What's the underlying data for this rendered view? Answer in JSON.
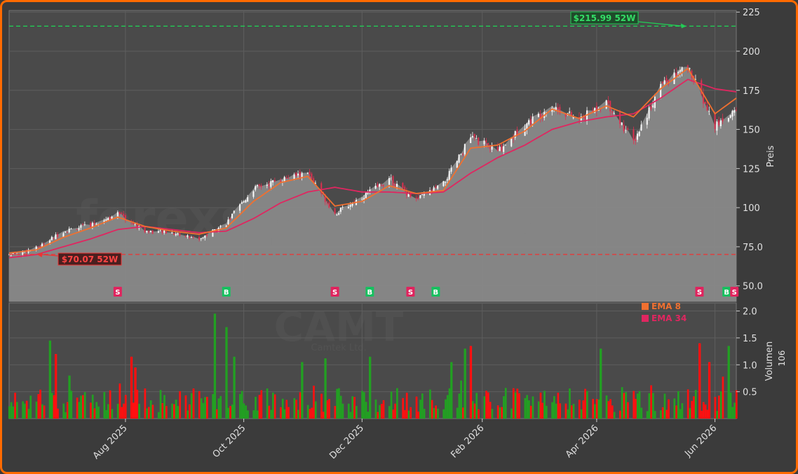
{
  "watermark": {
    "brand": "forexsignale.trade",
    "ticker": "CAMT",
    "company": "Camtek Ltd."
  },
  "colors": {
    "frame": "#ff6a00",
    "plot_bg": "#4a4a4a",
    "area_fill": "#8a8a8a",
    "up": "#22a022",
    "down": "#ff1010",
    "ema8": "#f07030",
    "ema34": "#e02660",
    "high_line": "#22cc55",
    "low_line": "#ee3333",
    "buy": "#18c060",
    "sell": "#e0245e"
  },
  "chart_data": [
    {
      "type": "line",
      "ylabel": "Preis",
      "ylim": [
        40,
        226
      ],
      "yticks": [
        "50.0",
        "75.0",
        "100",
        "125",
        "150",
        "175",
        "200",
        "225"
      ],
      "ytick_values": [
        50,
        75,
        100,
        125,
        150,
        175,
        200,
        225
      ],
      "xticks": [
        "Aug 2025",
        "Oct 2025",
        "Dec 2025",
        "Feb 2026",
        "Apr 2026",
        "Jun 2026"
      ],
      "xtick_dates": [
        "2025-08-01",
        "2025-10-01",
        "2025-12-01",
        "2026-02-01",
        "2026-04-01",
        "2026-06-01"
      ],
      "xrange": [
        "2025-06-02",
        "2026-06-12"
      ],
      "last_close": 163,
      "close_series": {
        "x": [
          "2025-06-02",
          "2025-06-16",
          "2025-06-30",
          "2025-07-14",
          "2025-07-28",
          "2025-08-11",
          "2025-08-25",
          "2025-09-08",
          "2025-09-22",
          "2025-10-06",
          "2025-10-20",
          "2025-11-03",
          "2025-11-17",
          "2025-12-01",
          "2025-12-15",
          "2025-12-29",
          "2026-01-12",
          "2026-01-26",
          "2026-02-09",
          "2026-02-23",
          "2026-03-09",
          "2026-03-23",
          "2026-04-06",
          "2026-04-20",
          "2026-05-04",
          "2026-05-18",
          "2026-06-01",
          "2026-06-12"
        ],
        "y": [
          70,
          74,
          85,
          89,
          96,
          85,
          84,
          80,
          90,
          112,
          118,
          122,
          96,
          107,
          118,
          105,
          115,
          145,
          136,
          153,
          165,
          156,
          168,
          142,
          178,
          190,
          152,
          163
        ]
      },
      "ema8": {
        "x": [
          "2025-06-02",
          "2025-06-16",
          "2025-06-30",
          "2025-07-14",
          "2025-07-28",
          "2025-08-11",
          "2025-08-25",
          "2025-09-08",
          "2025-09-22",
          "2025-10-06",
          "2025-10-20",
          "2025-11-03",
          "2025-11-17",
          "2025-12-01",
          "2025-12-15",
          "2025-12-29",
          "2026-01-12",
          "2026-01-26",
          "2026-02-09",
          "2026-02-23",
          "2026-03-09",
          "2026-03-23",
          "2026-04-06",
          "2026-04-20",
          "2026-05-04",
          "2026-05-18",
          "2026-06-01",
          "2026-06-12"
        ],
        "y": [
          71,
          73,
          81,
          87,
          94,
          88,
          85,
          83,
          87,
          104,
          116,
          120,
          101,
          104,
          114,
          109,
          111,
          138,
          140,
          149,
          163,
          157,
          165,
          158,
          176,
          189,
          160,
          170
        ]
      },
      "ema34": {
        "x": [
          "2025-06-02",
          "2025-06-16",
          "2025-06-30",
          "2025-07-14",
          "2025-07-28",
          "2025-08-11",
          "2025-08-25",
          "2025-09-08",
          "2025-09-22",
          "2025-10-06",
          "2025-10-20",
          "2025-11-03",
          "2025-11-17",
          "2025-12-01",
          "2025-12-15",
          "2025-12-29",
          "2026-01-12",
          "2026-01-26",
          "2026-02-09",
          "2026-02-23",
          "2026-03-09",
          "2026-03-23",
          "2026-04-06",
          "2026-04-20",
          "2026-05-04",
          "2026-05-18",
          "2026-06-01",
          "2026-06-12"
        ],
        "y": [
          68,
          70,
          75,
          80,
          86,
          88,
          86,
          84,
          85,
          93,
          103,
          110,
          113,
          110,
          110,
          109,
          110,
          122,
          132,
          140,
          150,
          155,
          158,
          160,
          170,
          182,
          176,
          174
        ]
      },
      "high_52w": {
        "value": 215.99,
        "label": "$215.99 52W",
        "date": "2026-05-18"
      },
      "low_52w": {
        "value": 70.07,
        "label": "$70.07 52W",
        "date": "2025-06-16"
      },
      "signals": [
        {
          "type": "S",
          "date": "2025-07-28"
        },
        {
          "type": "B",
          "date": "2025-09-22"
        },
        {
          "type": "S",
          "date": "2025-11-17"
        },
        {
          "type": "B",
          "date": "2025-12-05"
        },
        {
          "type": "S",
          "date": "2025-12-26"
        },
        {
          "type": "B",
          "date": "2026-01-08"
        },
        {
          "type": "S",
          "date": "2026-05-24"
        },
        {
          "type": "B",
          "date": "2026-06-07"
        },
        {
          "type": "S",
          "date": "2026-06-11"
        }
      ]
    },
    {
      "type": "bar",
      "ylabel": "Volumen",
      "yunit": "10^6",
      "ylim": [
        0,
        2.15
      ],
      "yticks": [
        "0.5",
        "1.0",
        "1.5",
        "2.0"
      ],
      "ytick_values": [
        0.5,
        1.0,
        1.5,
        2.0
      ],
      "legend": [
        {
          "name": "EMA 8",
          "color": "#f07030"
        },
        {
          "name": "EMA 34",
          "color": "#e02660"
        }
      ],
      "volume_spikes": [
        {
          "date": "2025-06-23",
          "value": 1.45,
          "dir": "up"
        },
        {
          "date": "2025-06-26",
          "value": 1.2,
          "dir": "down"
        },
        {
          "date": "2025-07-03",
          "value": 0.8,
          "dir": "up"
        },
        {
          "date": "2025-08-04",
          "value": 1.15,
          "dir": "down"
        },
        {
          "date": "2025-08-06",
          "value": 0.95,
          "dir": "down"
        },
        {
          "date": "2025-09-16",
          "value": 1.95,
          "dir": "up"
        },
        {
          "date": "2025-09-22",
          "value": 1.7,
          "dir": "up"
        },
        {
          "date": "2025-09-26",
          "value": 1.15,
          "dir": "up"
        },
        {
          "date": "2025-10-31",
          "value": 1.05,
          "dir": "up"
        },
        {
          "date": "2025-11-12",
          "value": 1.12,
          "dir": "up"
        },
        {
          "date": "2025-12-05",
          "value": 1.15,
          "dir": "up"
        },
        {
          "date": "2026-01-16",
          "value": 1.05,
          "dir": "up"
        },
        {
          "date": "2026-01-23",
          "value": 1.3,
          "dir": "up"
        },
        {
          "date": "2026-01-26",
          "value": 1.35,
          "dir": "down"
        },
        {
          "date": "2026-04-03",
          "value": 1.3,
          "dir": "up"
        },
        {
          "date": "2026-05-24",
          "value": 1.4,
          "dir": "down"
        },
        {
          "date": "2026-05-29",
          "value": 1.05,
          "dir": "down"
        },
        {
          "date": "2026-06-08",
          "value": 1.35,
          "dir": "up"
        }
      ]
    }
  ]
}
